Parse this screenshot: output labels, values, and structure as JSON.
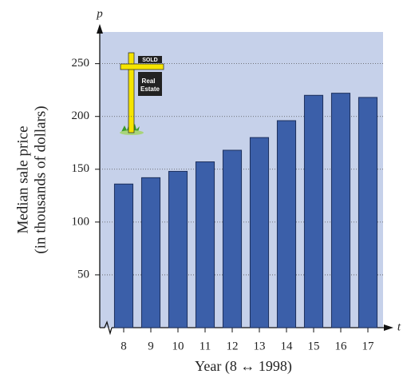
{
  "chart_data": {
    "type": "bar",
    "y_axis_symbol": "p",
    "x_axis_symbol": "t",
    "y_label_lines": [
      "Median sale price",
      "(in thousands of dollars)"
    ],
    "x_label": "Year (8 ↔ 1998)",
    "sign": [
      "SOLD",
      "Real",
      "Estate"
    ],
    "categories": [
      "8",
      "9",
      "10",
      "11",
      "12",
      "13",
      "14",
      "15",
      "16",
      "17"
    ],
    "values": [
      136,
      142,
      148,
      157,
      168,
      180,
      196,
      220,
      222,
      218
    ],
    "color": "#3b5fa9",
    "ylim": [
      0,
      280
    ],
    "yticks": [
      50,
      100,
      150,
      200,
      250
    ],
    "grid": true
  }
}
